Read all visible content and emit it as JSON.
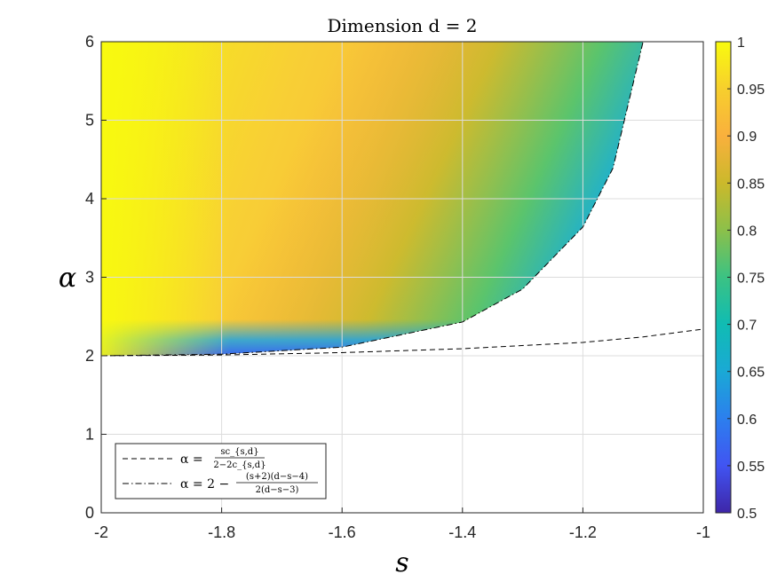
{
  "chart_data": {
    "type": "heatmap",
    "title": "Dimension d = 2",
    "xlabel": "s",
    "ylabel": "α",
    "xlim": [
      -2,
      -1
    ],
    "ylim": [
      0,
      6
    ],
    "xticks": [
      "-2",
      "-1.8",
      "-1.6",
      "-1.4",
      "-1.2",
      "-1"
    ],
    "yticks": [
      "0",
      "1",
      "2",
      "3",
      "4",
      "5",
      "6"
    ],
    "grid": true,
    "colormap": "parula",
    "colorbar": {
      "range": [
        0.5,
        1
      ],
      "ticks": [
        "0.5",
        "0.55",
        "0.6",
        "0.65",
        "0.7",
        "0.75",
        "0.8",
        "0.85",
        "0.9",
        "0.95",
        "1"
      ]
    },
    "curves": [
      {
        "style": "dashed",
        "label_lhs": "α =",
        "label_num": "sc_{s,d}",
        "label_den": "2−2c_{s,d}",
        "x": [
          -2,
          -1.8,
          -1.6,
          -1.4,
          -1.2,
          -1.1,
          -1
        ],
        "y": [
          2.0,
          2.01,
          2.04,
          2.09,
          2.17,
          2.24,
          2.34
        ]
      },
      {
        "style": "dash-dot",
        "label_lhs": "α = 2 −",
        "label_num": "(s+2)(d−s−4)",
        "label_den": "2(d−s−3)",
        "x": [
          -2,
          -1.8,
          -1.6,
          -1.4,
          -1.3,
          -1.2,
          -1.15,
          -1.1
        ],
        "y": [
          2.0,
          2.02,
          2.11,
          2.43,
          2.85,
          3.64,
          4.39,
          6.0
        ]
      }
    ],
    "legend_position": "bottom-left"
  }
}
